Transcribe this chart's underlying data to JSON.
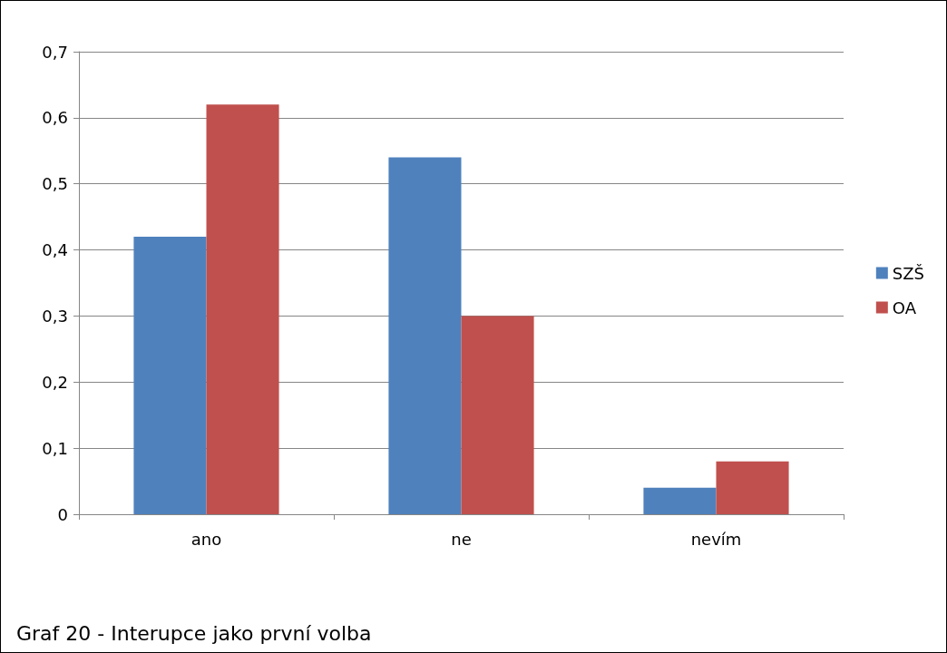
{
  "chart_data": {
    "type": "bar",
    "categories": [
      "ano",
      "ne",
      "nevím"
    ],
    "series": [
      {
        "name": "SZŠ",
        "color": "#4f81bd",
        "values": [
          0.42,
          0.54,
          0.04
        ]
      },
      {
        "name": "OA",
        "color": "#c0504d",
        "values": [
          0.62,
          0.3,
          0.08
        ]
      }
    ],
    "ylim": [
      0,
      0.7
    ],
    "yticks": [
      0,
      {
        "value": 0.1,
        "label": "0,1"
      },
      {
        "value": 0.2,
        "label": "0,2"
      },
      {
        "value": 0.3,
        "label": "0,3"
      },
      {
        "value": 0.4,
        "label": "0,4"
      },
      {
        "value": 0.5,
        "label": "0,5"
      },
      {
        "value": 0.6,
        "label": "0,6"
      },
      {
        "value": 0.7,
        "label": "0,7"
      }
    ],
    "grid": "y",
    "legend": "right",
    "annotations": [
      "Graf 20 - Interupce jako první volba"
    ]
  }
}
